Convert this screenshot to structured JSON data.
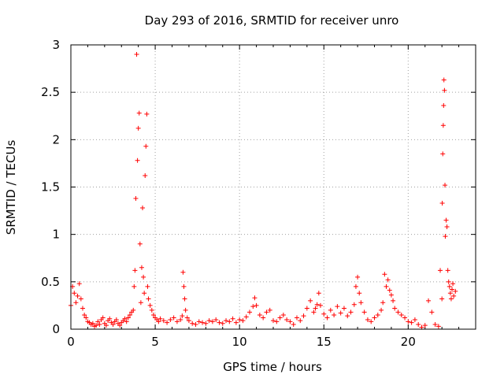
{
  "chart_data": {
    "type": "scatter",
    "title": "Day 293 of 2016, SRMTID for receiver unro",
    "xlabel": "GPS time / hours",
    "ylabel": "SRMTID / TECUs",
    "xlim": [
      0,
      24
    ],
    "ylim": [
      0,
      3
    ],
    "xticks": [
      0,
      5,
      10,
      15,
      20
    ],
    "xtick_labels": [
      "0",
      "5",
      "10",
      "15",
      "20"
    ],
    "yticks": [
      0,
      0.5,
      1,
      1.5,
      2,
      2.5,
      3
    ],
    "ytick_labels": [
      "0",
      "0.5",
      "1",
      "1.5",
      "2",
      "2.5",
      "3"
    ],
    "grid": true,
    "marker": "+",
    "color": "#ff0000",
    "series": [
      {
        "name": "SRMTID",
        "x": [
          0.0,
          0.1,
          0.2,
          0.3,
          0.4,
          0.5,
          0.6,
          0.7,
          0.8,
          0.9,
          1.0,
          1.1,
          1.2,
          1.3,
          1.4,
          1.5,
          1.6,
          1.7,
          1.8,
          1.9,
          2.0,
          2.1,
          2.2,
          2.3,
          2.4,
          2.5,
          2.6,
          2.7,
          2.8,
          2.9,
          3.0,
          3.1,
          3.2,
          3.3,
          3.4,
          3.5,
          3.6,
          3.7,
          3.75,
          3.8,
          3.85,
          3.9,
          3.95,
          4.0,
          4.05,
          4.1,
          4.15,
          4.2,
          4.25,
          4.3,
          4.35,
          4.4,
          4.45,
          4.5,
          4.55,
          4.6,
          4.7,
          4.8,
          4.9,
          5.0,
          5.1,
          5.2,
          5.3,
          5.5,
          5.7,
          5.9,
          6.1,
          6.3,
          6.5,
          6.6,
          6.65,
          6.7,
          6.75,
          6.8,
          6.9,
          7.0,
          7.2,
          7.4,
          7.6,
          7.8,
          8.0,
          8.2,
          8.4,
          8.6,
          8.8,
          9.0,
          9.2,
          9.4,
          9.6,
          9.8,
          10.0,
          10.2,
          10.4,
          10.6,
          10.8,
          10.9,
          11.0,
          11.2,
          11.4,
          11.6,
          11.8,
          12.0,
          12.2,
          12.4,
          12.6,
          12.8,
          13.0,
          13.2,
          13.4,
          13.6,
          13.8,
          14.0,
          14.2,
          14.4,
          14.5,
          14.6,
          14.7,
          14.8,
          15.0,
          15.2,
          15.4,
          15.6,
          15.8,
          16.0,
          16.2,
          16.4,
          16.6,
          16.8,
          16.9,
          17.0,
          17.1,
          17.2,
          17.4,
          17.6,
          17.8,
          18.0,
          18.2,
          18.4,
          18.5,
          18.6,
          18.7,
          18.8,
          18.9,
          19.0,
          19.1,
          19.2,
          19.4,
          19.6,
          19.8,
          20.0,
          20.2,
          20.4,
          20.6,
          20.8,
          21.0,
          21.2,
          21.4,
          21.6,
          21.8,
          21.9,
          22.0,
          22.02,
          22.05,
          22.08,
          22.1,
          22.12,
          22.15,
          22.18,
          22.2,
          22.25,
          22.3,
          22.35,
          22.4,
          22.45,
          22.5,
          22.55,
          22.6,
          22.65,
          22.7,
          22.8
        ],
        "y": [
          0.25,
          0.45,
          0.38,
          0.28,
          0.35,
          0.48,
          0.32,
          0.22,
          0.15,
          0.12,
          0.08,
          0.07,
          0.05,
          0.06,
          0.03,
          0.04,
          0.08,
          0.05,
          0.1,
          0.12,
          0.06,
          0.04,
          0.09,
          0.11,
          0.07,
          0.05,
          0.08,
          0.1,
          0.06,
          0.04,
          0.07,
          0.09,
          0.11,
          0.08,
          0.12,
          0.15,
          0.18,
          0.2,
          0.45,
          0.62,
          1.38,
          2.9,
          1.78,
          2.12,
          2.28,
          0.9,
          0.28,
          0.65,
          1.28,
          0.55,
          0.38,
          1.62,
          1.93,
          2.27,
          0.45,
          0.32,
          0.25,
          0.2,
          0.15,
          0.12,
          0.1,
          0.08,
          0.11,
          0.09,
          0.07,
          0.1,
          0.12,
          0.08,
          0.1,
          0.14,
          0.6,
          0.45,
          0.32,
          0.2,
          0.12,
          0.09,
          0.06,
          0.05,
          0.08,
          0.07,
          0.06,
          0.09,
          0.08,
          0.1,
          0.07,
          0.06,
          0.09,
          0.08,
          0.11,
          0.07,
          0.1,
          0.09,
          0.13,
          0.18,
          0.24,
          0.33,
          0.25,
          0.15,
          0.12,
          0.18,
          0.2,
          0.09,
          0.08,
          0.12,
          0.15,
          0.1,
          0.08,
          0.05,
          0.12,
          0.09,
          0.14,
          0.22,
          0.3,
          0.18,
          0.22,
          0.26,
          0.38,
          0.25,
          0.16,
          0.12,
          0.2,
          0.15,
          0.24,
          0.17,
          0.22,
          0.14,
          0.18,
          0.26,
          0.45,
          0.55,
          0.38,
          0.28,
          0.18,
          0.1,
          0.08,
          0.12,
          0.15,
          0.2,
          0.28,
          0.58,
          0.45,
          0.52,
          0.41,
          0.36,
          0.3,
          0.22,
          0.18,
          0.15,
          0.12,
          0.08,
          0.07,
          0.1,
          0.05,
          0.02,
          0.04,
          0.3,
          0.18,
          0.05,
          0.03,
          0.62,
          0.32,
          1.33,
          1.85,
          2.15,
          2.36,
          2.63,
          2.52,
          1.52,
          0.98,
          1.15,
          1.08,
          0.62,
          0.5,
          0.45,
          0.38,
          0.32,
          0.42,
          0.48,
          0.35,
          0.4
        ]
      }
    ]
  }
}
